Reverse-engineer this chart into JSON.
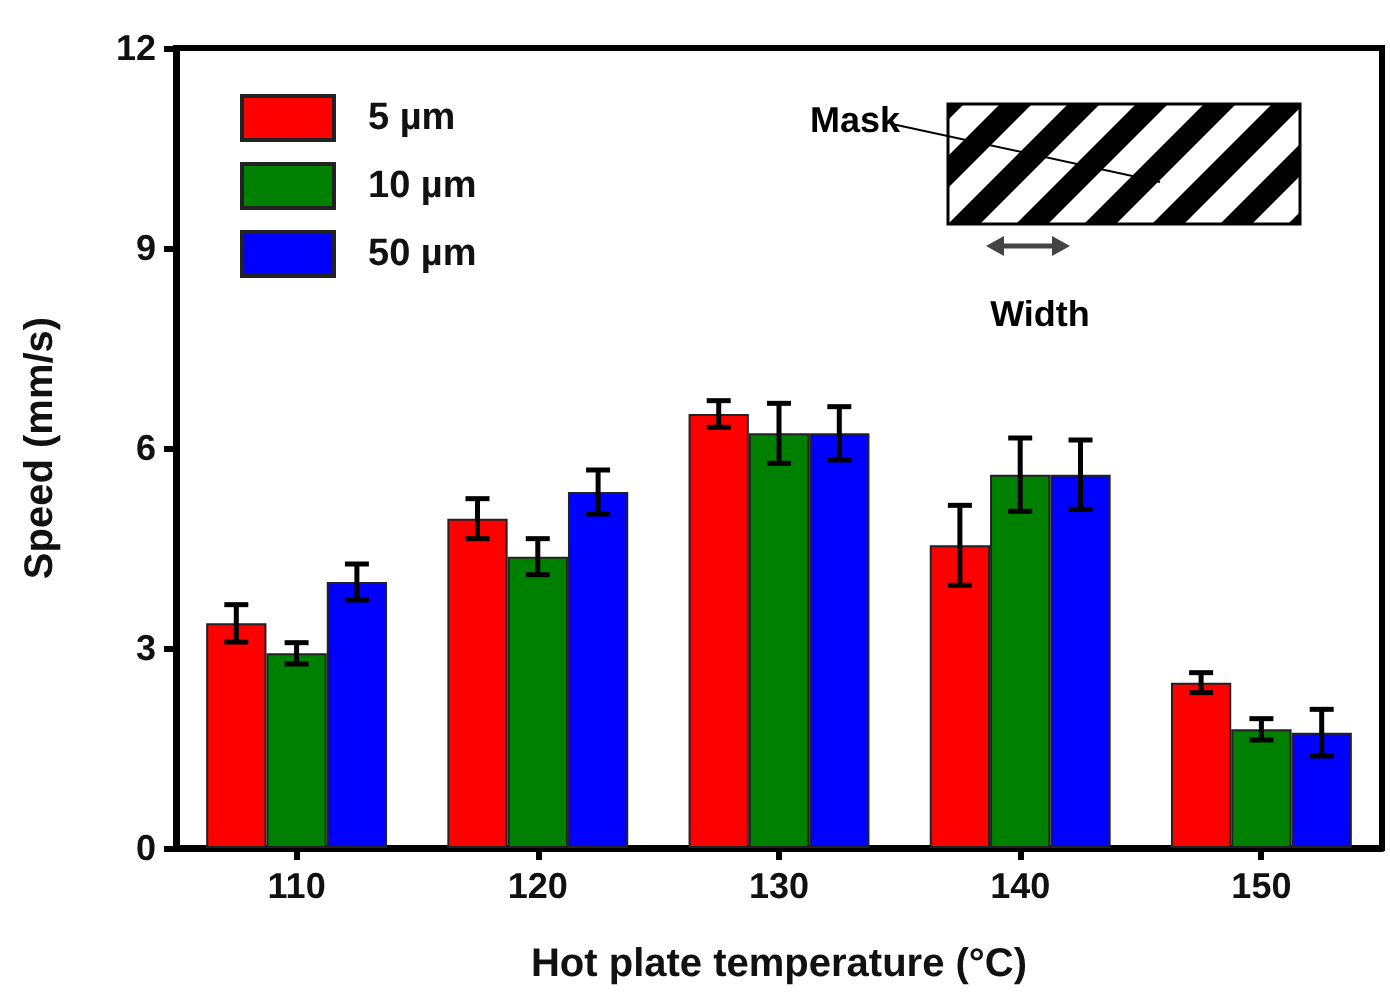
{
  "chart_data": {
    "type": "bar",
    "xlabel": "Hot plate temperature (°C)",
    "ylabel": "Speed (mm/s)",
    "categories": [
      "110",
      "120",
      "130",
      "140",
      "150"
    ],
    "series": [
      {
        "name": "5 µm",
        "color": "#ff0000",
        "values": [
          3.37,
          4.94,
          6.51,
          4.54,
          2.48
        ],
        "errors": [
          0.28,
          0.3,
          0.2,
          0.6,
          0.15
        ]
      },
      {
        "name": "10 µm",
        "color": "#008000",
        "values": [
          2.92,
          4.37,
          6.22,
          5.6,
          1.78
        ],
        "errors": [
          0.16,
          0.27,
          0.45,
          0.55,
          0.16
        ]
      },
      {
        "name": "50 µm",
        "color": "#0000ff",
        "values": [
          3.99,
          5.34,
          6.22,
          5.6,
          1.73
        ],
        "errors": [
          0.27,
          0.33,
          0.4,
          0.52,
          0.35
        ]
      }
    ],
    "ylim": [
      0,
      12
    ],
    "yticks": [
      0,
      3,
      6,
      9,
      12
    ],
    "grid": false,
    "legend": "top left",
    "annotations": [
      "Mask",
      "Width"
    ]
  }
}
